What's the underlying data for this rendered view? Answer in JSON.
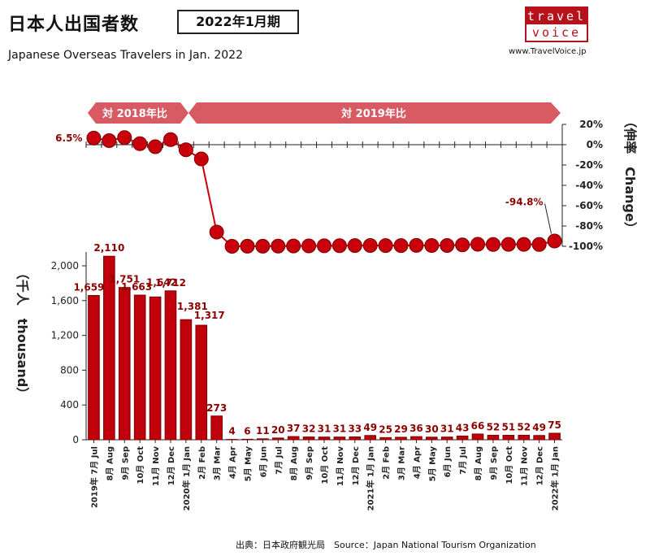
{
  "header": {
    "title": "日本人出国者数",
    "period": "2022年1月期",
    "subtitle": "Japanese Overseas Travelers in Jan. 2022"
  },
  "logo": {
    "line1": "travel",
    "line2": "voice",
    "url": "www.TravelVoice.jp"
  },
  "source": "出典：日本政府観光局　Source：Japan  National Tourism  Organization",
  "colors": {
    "bar": "#c0000a",
    "bar_border": "#7a0000",
    "dot": "#c8000c",
    "banner": "#d85a63",
    "label": "#8b0000"
  },
  "banners": {
    "left": "対 2018年比",
    "right": "対 2019年比"
  },
  "chart_data": [
    {
      "type": "bar",
      "ylabel": "（千人　thousand）",
      "ylim": [
        0,
        2000
      ],
      "yticks": [
        0,
        400,
        800,
        1200,
        1600,
        2000
      ],
      "ytick_labels": [
        "0",
        "400",
        "800",
        "1,200",
        "1,600",
        "2,000"
      ],
      "categories": [
        "2019年 7月 Jul",
        "8月 Aug",
        "9月 Sep",
        "10月 Oct",
        "11月 Nov",
        "12月 Dec",
        "2020年 1月 Jan",
        "2月 Feb",
        "3月 Mar",
        "4月 Apr",
        "5月 May",
        "6月 Jun",
        "7月 Jul",
        "8月 Aug",
        "9月 Sep",
        "10月 Oct",
        "11月 Nov",
        "12月 Dec",
        "2021年 1月 Jan",
        "2月 Feb",
        "3月 Mar",
        "4月 Apr",
        "5月 May",
        "6月 Jun",
        "7月 Jul",
        "8月 Aug",
        "9月 Sep",
        "10月 Oct",
        "11月 Nov",
        "12月 Dec",
        "2022年 1月 Jan"
      ],
      "values": [
        1659,
        2110,
        1751,
        1663,
        1642,
        1712,
        1381,
        1317,
        273,
        4,
        6,
        11,
        20,
        37,
        32,
        31,
        31,
        33,
        49,
        25,
        29,
        36,
        30,
        31,
        43,
        66,
        52,
        51,
        52,
        49,
        75
      ],
      "value_labels": [
        "1,659",
        "2,110",
        "1,751",
        "1,663",
        "1,642",
        "1,712",
        "1,381",
        "1,317",
        "273",
        "4",
        "6",
        "11",
        "20",
        "37",
        "32",
        "31",
        "31",
        "33",
        "49",
        "25",
        "29",
        "36",
        "30",
        "31",
        "43",
        "66",
        "52",
        "51",
        "52",
        "49",
        "75"
      ]
    },
    {
      "type": "line",
      "ylabel": "（伸率　Change）",
      "ylim": [
        -100,
        20
      ],
      "yticks": [
        20,
        0,
        -20,
        -40,
        -60,
        -80,
        -100
      ],
      "ytick_labels": [
        "20%",
        "0%",
        "-20%",
        "-40%",
        "-60%",
        "-80%",
        "-100%"
      ],
      "values": [
        6.5,
        4,
        7,
        1,
        -2,
        5,
        -5,
        -14,
        -86,
        -100,
        -99.9,
        -99.9,
        -99.8,
        -99.7,
        -99.6,
        -99.5,
        -99.4,
        -99.3,
        -99.2,
        -99.3,
        -99.3,
        -99.1,
        -99.2,
        -99.2,
        -98.6,
        -98,
        -98.2,
        -98.1,
        -98.1,
        -98.2,
        -94.8
      ],
      "point_labels": [
        {
          "index": 0,
          "text": "6.5%"
        },
        {
          "index": 30,
          "text": "-94.8%"
        }
      ]
    }
  ]
}
